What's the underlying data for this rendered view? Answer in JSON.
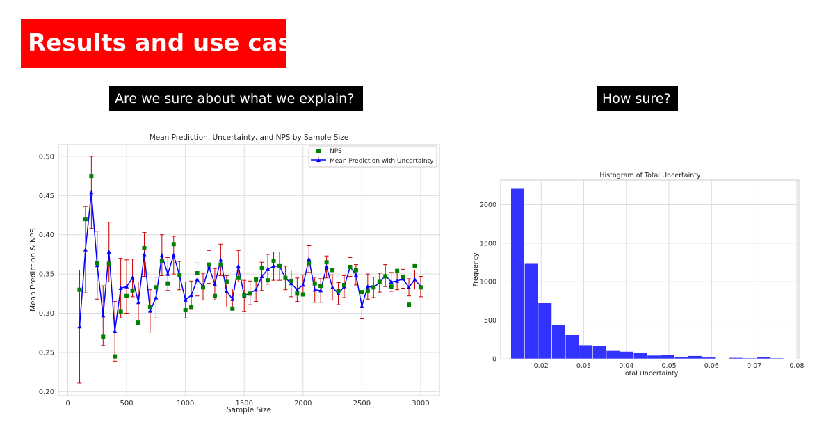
{
  "slide": {
    "title": "Results and use case:",
    "subtitle_left": "Are we sure about what we explain?",
    "subtitle_right": "How sure?"
  },
  "chart_data": [
    {
      "type": "line",
      "title": "Mean Prediction, Uncertainty, and NPS by Sample Size",
      "xlabel": "Sample Size",
      "ylabel": "Mean Prediction & NPS",
      "xlim": [
        -80,
        3160
      ],
      "ylim": [
        0.195,
        0.515
      ],
      "xticks": [
        0,
        500,
        1000,
        1500,
        2000,
        2500,
        3000
      ],
      "yticks": [
        0.2,
        0.25,
        0.3,
        0.35,
        0.4,
        0.45,
        0.5
      ],
      "grid": true,
      "legend": "top-right",
      "x": [
        100,
        150,
        200,
        250,
        300,
        350,
        400,
        450,
        500,
        550,
        600,
        650,
        700,
        750,
        800,
        850,
        900,
        950,
        1000,
        1050,
        1100,
        1150,
        1200,
        1250,
        1300,
        1350,
        1400,
        1450,
        1500,
        1550,
        1600,
        1650,
        1700,
        1750,
        1800,
        1850,
        1900,
        1950,
        2000,
        2050,
        2100,
        2150,
        2200,
        2250,
        2300,
        2350,
        2400,
        2450,
        2500,
        2550,
        2600,
        2650,
        2700,
        2750,
        2800,
        2850,
        2900,
        2950,
        3000
      ],
      "series": [
        {
          "name": "NPS",
          "marker": "square",
          "color": "#008000",
          "values": [
            0.33,
            0.42,
            0.475,
            0.364,
            0.27,
            0.363,
            0.245,
            0.302,
            0.322,
            0.329,
            0.288,
            0.383,
            0.308,
            0.333,
            0.367,
            0.338,
            0.388,
            0.349,
            0.304,
            0.308,
            0.351,
            0.333,
            0.362,
            0.322,
            0.362,
            0.34,
            0.306,
            0.345,
            0.323,
            0.325,
            0.343,
            0.358,
            0.342,
            0.367,
            0.36,
            0.345,
            0.341,
            0.325,
            0.324,
            0.364,
            0.338,
            0.335,
            0.365,
            0.355,
            0.328,
            0.336,
            0.359,
            0.355,
            0.327,
            0.328,
            0.333,
            0.34,
            0.347,
            0.334,
            0.354,
            0.346,
            0.311,
            0.36,
            0.333
          ]
        },
        {
          "name": "Mean Prediction with Uncertainty",
          "marker": "triangle",
          "color": "#0000ff",
          "error_color": "#cc0000",
          "values": [
            0.283,
            0.381,
            0.454,
            0.361,
            0.297,
            0.378,
            0.277,
            0.332,
            0.334,
            0.345,
            0.314,
            0.375,
            0.303,
            0.32,
            0.374,
            0.35,
            0.374,
            0.348,
            0.317,
            0.323,
            0.343,
            0.334,
            0.359,
            0.337,
            0.368,
            0.328,
            0.318,
            0.36,
            0.322,
            0.326,
            0.33,
            0.347,
            0.356,
            0.36,
            0.36,
            0.345,
            0.338,
            0.33,
            0.336,
            0.369,
            0.33,
            0.329,
            0.359,
            0.333,
            0.325,
            0.334,
            0.359,
            0.349,
            0.309,
            0.334,
            0.333,
            0.339,
            0.348,
            0.34,
            0.341,
            0.344,
            0.333,
            0.343,
            0.334
          ],
          "errors": [
            0.072,
            0.055,
            0.046,
            0.043,
            0.038,
            0.038,
            0.038,
            0.038,
            0.034,
            0.024,
            0.026,
            0.028,
            0.027,
            0.026,
            0.026,
            0.021,
            0.024,
            0.018,
            0.023,
            0.018,
            0.021,
            0.017,
            0.021,
            0.02,
            0.02,
            0.02,
            0.013,
            0.02,
            0.02,
            0.015,
            0.015,
            0.018,
            0.019,
            0.018,
            0.018,
            0.015,
            0.017,
            0.015,
            0.013,
            0.017,
            0.016,
            0.015,
            0.014,
            0.016,
            0.014,
            0.014,
            0.012,
            0.013,
            0.016,
            0.016,
            0.013,
            0.012,
            0.014,
            0.012,
            0.011,
            0.012,
            0.011,
            0.012,
            0.013
          ]
        }
      ]
    },
    {
      "type": "bar",
      "title": "Histogram of Total Uncertainty",
      "xlabel": "Total Uncertainty",
      "ylabel": "Frequency",
      "xlim": [
        0.0105,
        0.0805
      ],
      "ylim": [
        0,
        2320
      ],
      "xticks": [
        0.02,
        0.03,
        0.04,
        0.05,
        0.06,
        0.07,
        0.08
      ],
      "yticks": [
        0,
        500,
        1000,
        1500,
        2000
      ],
      "grid": true,
      "color": "#3333ff",
      "bins": [
        0.0145,
        0.0177,
        0.0209,
        0.0241,
        0.0273,
        0.0305,
        0.0337,
        0.0369,
        0.0401,
        0.0433,
        0.0465,
        0.0497,
        0.0529,
        0.0561,
        0.0593,
        0.0625,
        0.0657,
        0.0689,
        0.0721,
        0.0753,
        0.0785
      ],
      "values": [
        2210,
        1235,
        725,
        445,
        310,
        180,
        170,
        105,
        95,
        75,
        45,
        50,
        30,
        40,
        20,
        5,
        15,
        10,
        25,
        10,
        5
      ]
    }
  ]
}
